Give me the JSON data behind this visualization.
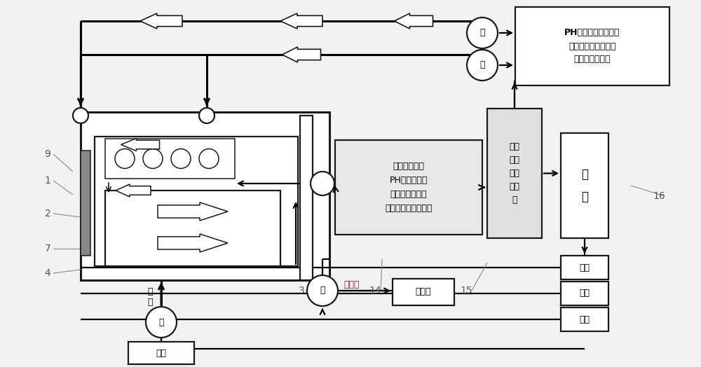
{
  "bg_color": "#f2f2f2",
  "line_color": "#1a1a1a",
  "pump_label": "泵",
  "water_source_label": "水源",
  "water_supplement_label": "补\n水",
  "reservoir_label": "蓄水区",
  "drain_label": "排运管",
  "sensor_box_text": "溶解氧检测仪\nPH浓度检测仪\n氨氮浓度检测仪\n亚硝基氨浓度检测仪",
  "data_module_text": "数据\n分析\n及控\n制模\n块",
  "power_text": "电\n源",
  "switch_text": "开关",
  "reagent_text": "PH浓度调配液、氨氮\n浓度调配液、亚硝酸\n基氨浓度调配液"
}
